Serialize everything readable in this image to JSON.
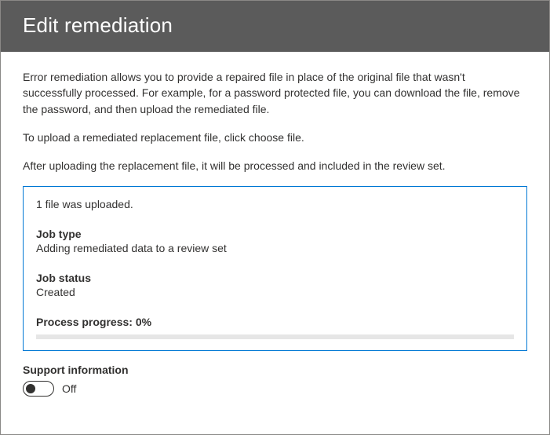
{
  "header": {
    "title": "Edit remediation",
    "background_color": "#5b5b5b",
    "text_color": "#ffffff"
  },
  "content": {
    "paragraphs": {
      "intro": "Error remediation allows you to provide a repaired file in place of the original file that wasn't successfully processed. For example, for a password protected file, you can download the file, remove the password, and then upload the remediated file.",
      "instruction": "To upload a remediated replacement file, click choose file.",
      "after": "After uploading the replacement file, it will be processed and included in the review set."
    }
  },
  "status": {
    "border_color": "#0078d4",
    "upload_message": "1 file was uploaded.",
    "fields": {
      "job_type": {
        "label": "Job type",
        "value": "Adding remediated data to a review set"
      },
      "job_status": {
        "label": "Job status",
        "value": "Created"
      }
    },
    "progress": {
      "label": "Process progress: 0%",
      "percent": 0,
      "bar_bg": "#e6e6e6"
    }
  },
  "support": {
    "label": "Support information",
    "toggle_state": "Off",
    "toggle_on": false
  }
}
